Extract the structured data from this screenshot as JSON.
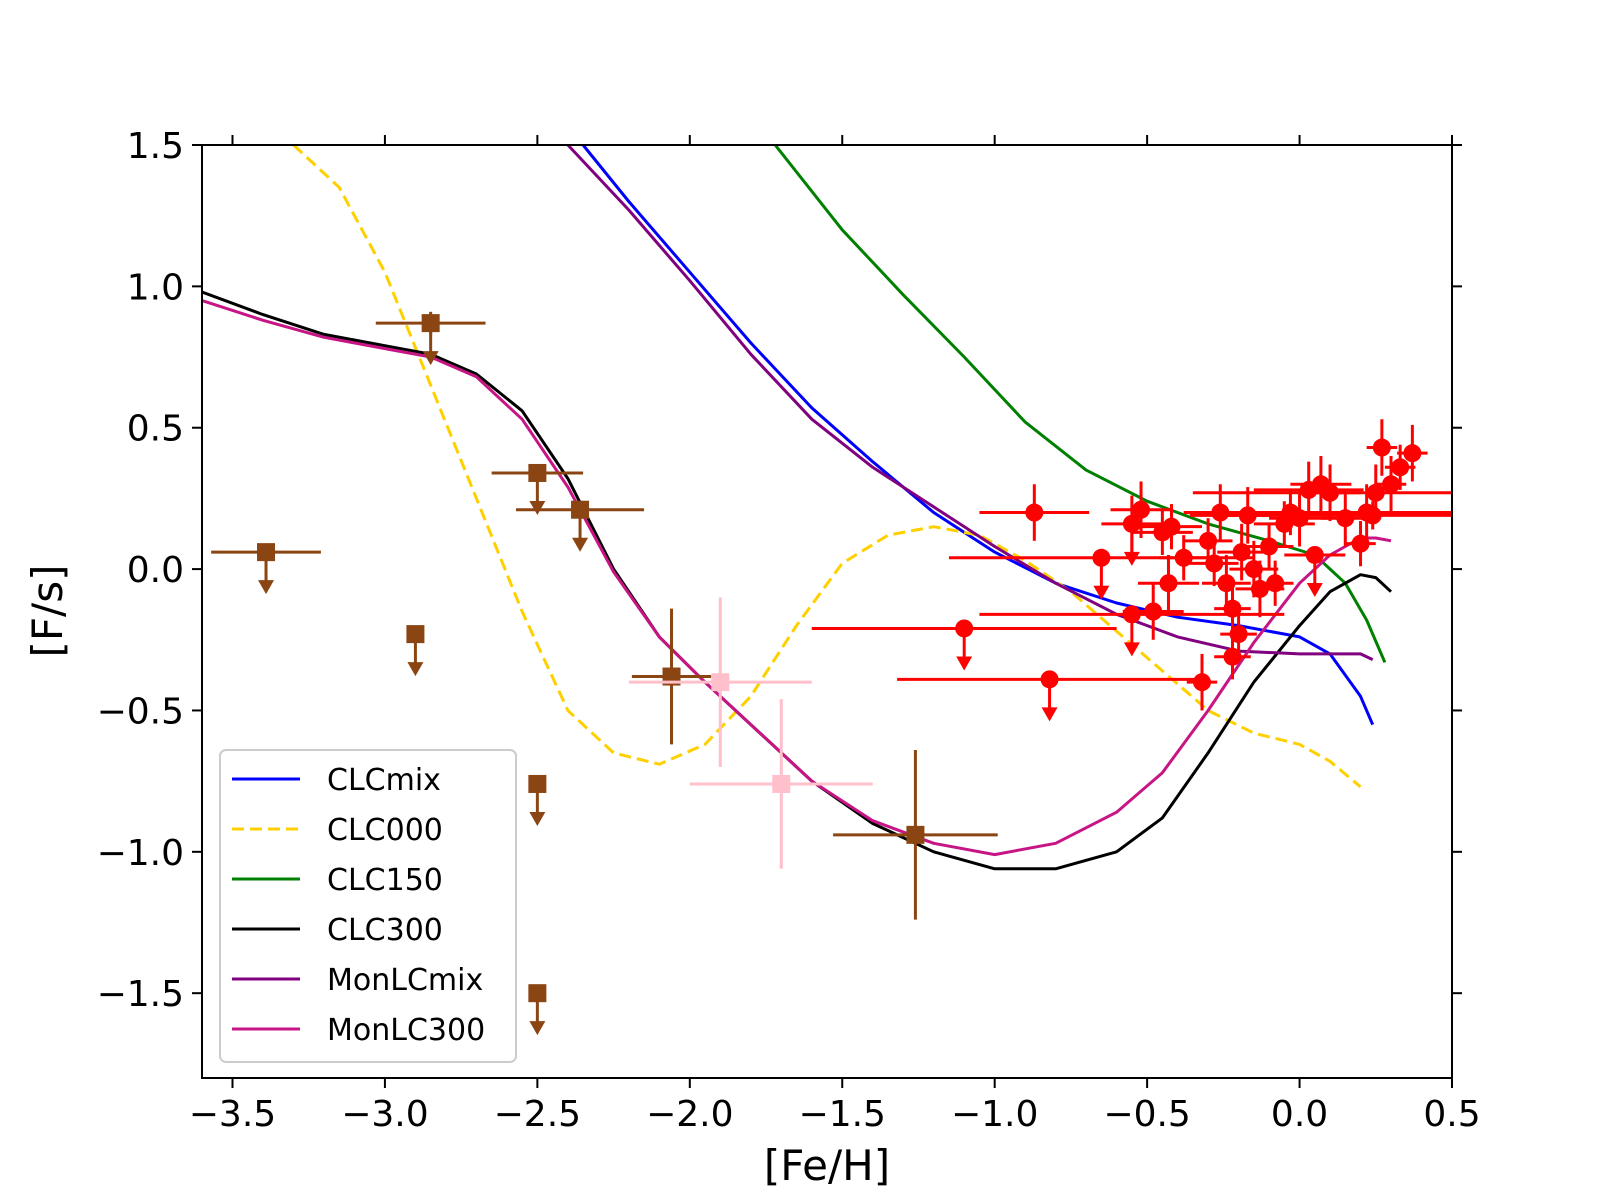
{
  "chart_data": {
    "type": "line",
    "title": "",
    "xlabel": "[Fe/H]",
    "ylabel": "[F/s]",
    "xlim": [
      -3.6,
      0.5
    ],
    "ylim": [
      -1.8,
      1.5
    ],
    "xticks": [
      -3.5,
      -3.0,
      -2.5,
      -2.0,
      -1.5,
      -1.0,
      -0.5,
      0.0,
      0.5
    ],
    "yticks": [
      1.5,
      1.0,
      0.5,
      0.0,
      -0.5,
      -1.0,
      -1.5
    ],
    "xtick_labels": [
      "−3.5",
      "−3.0",
      "−2.5",
      "−2.0",
      "−1.5",
      "−1.0",
      "−0.5",
      "0.0",
      "0.5"
    ],
    "ytick_labels": [
      "1.5",
      "1.0",
      "0.5",
      "0.0",
      "−0.5",
      "−1.0",
      "−1.5"
    ],
    "legend_position": "lower-left",
    "series": [
      {
        "name": "CLCmix",
        "color": "#0000ff",
        "dash": "solid",
        "x": [
          -2.35,
          -2.2,
          -2.0,
          -1.8,
          -1.6,
          -1.4,
          -1.2,
          -1.0,
          -0.8,
          -0.6,
          -0.4,
          -0.2,
          0.0,
          0.1,
          0.2,
          0.24
        ],
        "y": [
          1.5,
          1.3,
          1.05,
          0.8,
          0.57,
          0.38,
          0.2,
          0.06,
          -0.05,
          -0.12,
          -0.17,
          -0.2,
          -0.24,
          -0.3,
          -0.45,
          -0.55
        ]
      },
      {
        "name": "CLC000",
        "color": "#ffd000",
        "dash": "dashed",
        "x": [
          -3.3,
          -3.15,
          -3.0,
          -2.85,
          -2.7,
          -2.55,
          -2.4,
          -2.25,
          -2.1,
          -1.95,
          -1.8,
          -1.65,
          -1.5,
          -1.35,
          -1.2,
          -1.05,
          -0.9,
          -0.75,
          -0.6,
          -0.45,
          -0.3,
          -0.15,
          0.0,
          0.1,
          0.2
        ],
        "y": [
          1.5,
          1.35,
          1.05,
          0.65,
          0.25,
          -0.15,
          -0.5,
          -0.65,
          -0.69,
          -0.62,
          -0.45,
          -0.2,
          0.02,
          0.12,
          0.15,
          0.12,
          0.03,
          -0.08,
          -0.22,
          -0.36,
          -0.5,
          -0.58,
          -0.62,
          -0.68,
          -0.77
        ]
      },
      {
        "name": "CLC150",
        "color": "#008000",
        "dash": "solid",
        "x": [
          -1.72,
          -1.5,
          -1.3,
          -1.1,
          -0.9,
          -0.7,
          -0.5,
          -0.3,
          -0.1,
          0.05,
          0.15,
          0.22,
          0.28
        ],
        "y": [
          1.5,
          1.2,
          0.97,
          0.75,
          0.52,
          0.35,
          0.24,
          0.16,
          0.1,
          0.05,
          -0.05,
          -0.18,
          -0.33
        ]
      },
      {
        "name": "CLC300",
        "color": "#000000",
        "dash": "solid",
        "x": [
          -3.6,
          -3.4,
          -3.2,
          -3.0,
          -2.85,
          -2.7,
          -2.55,
          -2.4,
          -2.25,
          -2.1,
          -1.95,
          -1.8,
          -1.6,
          -1.4,
          -1.2,
          -1.0,
          -0.8,
          -0.6,
          -0.45,
          -0.3,
          -0.15,
          0.0,
          0.1,
          0.2,
          0.25,
          0.3
        ],
        "y": [
          0.98,
          0.9,
          0.83,
          0.79,
          0.76,
          0.69,
          0.56,
          0.32,
          0.0,
          -0.24,
          -0.4,
          -0.55,
          -0.75,
          -0.9,
          -1.0,
          -1.06,
          -1.06,
          -1.0,
          -0.88,
          -0.65,
          -0.4,
          -0.2,
          -0.08,
          -0.02,
          -0.03,
          -0.08
        ]
      },
      {
        "name": "MonLCmix",
        "color": "#800080",
        "dash": "solid",
        "x": [
          -2.4,
          -2.2,
          -2.0,
          -1.8,
          -1.6,
          -1.4,
          -1.2,
          -1.0,
          -0.8,
          -0.6,
          -0.4,
          -0.2,
          0.0,
          0.1,
          0.2,
          0.24
        ],
        "y": [
          1.5,
          1.27,
          1.02,
          0.76,
          0.53,
          0.36,
          0.22,
          0.08,
          -0.05,
          -0.16,
          -0.24,
          -0.29,
          -0.3,
          -0.3,
          -0.3,
          -0.32
        ]
      },
      {
        "name": "MonLC300",
        "color": "#c71585",
        "dash": "solid",
        "x": [
          -3.6,
          -3.4,
          -3.2,
          -3.0,
          -2.85,
          -2.7,
          -2.55,
          -2.4,
          -2.25,
          -2.1,
          -1.95,
          -1.8,
          -1.6,
          -1.4,
          -1.2,
          -1.0,
          -0.8,
          -0.6,
          -0.45,
          -0.3,
          -0.15,
          0.0,
          0.1,
          0.2,
          0.25,
          0.3
        ],
        "y": [
          0.95,
          0.88,
          0.82,
          0.78,
          0.75,
          0.68,
          0.53,
          0.29,
          -0.01,
          -0.24,
          -0.4,
          -0.55,
          -0.75,
          -0.89,
          -0.97,
          -1.01,
          -0.97,
          -0.86,
          -0.72,
          -0.5,
          -0.26,
          -0.05,
          0.05,
          0.11,
          0.11,
          0.1
        ]
      }
    ],
    "observations": [
      {
        "name": "brown-squares",
        "color": "#8b4513",
        "marker": "square",
        "points": [
          {
            "x": -3.39,
            "y": 0.06,
            "xerr": 0.18,
            "yerr": 0,
            "upper": true
          },
          {
            "x": -2.9,
            "y": -0.23,
            "xerr": 0,
            "yerr": 0,
            "upper": true
          },
          {
            "x": -2.85,
            "y": 0.87,
            "xerr": 0.18,
            "yerr": 0.04,
            "upper": true
          },
          {
            "x": -2.5,
            "y": 0.34,
            "xerr": 0.15,
            "yerr": 0,
            "upper": true
          },
          {
            "x": -2.36,
            "y": 0.21,
            "xerr": 0.21,
            "yerr": 0,
            "upper": true
          },
          {
            "x": -2.06,
            "y": -0.38,
            "xerr": 0.13,
            "yerr": 0.24,
            "upper": false
          },
          {
            "x": -1.26,
            "y": -0.94,
            "xerr": 0.27,
            "yerr": 0.3,
            "upper": false
          },
          {
            "x": -2.5,
            "y": -0.76,
            "xerr": 0,
            "yerr": 0,
            "upper": true
          },
          {
            "x": -2.5,
            "y": -1.5,
            "xerr": 0,
            "yerr": 0,
            "upper": true
          }
        ]
      },
      {
        "name": "pink-squares",
        "color": "#ffc0cb",
        "marker": "square",
        "points": [
          {
            "x": -1.9,
            "y": -0.4,
            "xerr": 0.3,
            "yerr": 0.3,
            "upper": false
          },
          {
            "x": -1.7,
            "y": -0.76,
            "xerr": 0.3,
            "yerr": 0.3,
            "upper": false
          }
        ]
      },
      {
        "name": "red-circles",
        "color": "#ff0000",
        "marker": "circle",
        "points": [
          {
            "x": -0.87,
            "y": 0.2,
            "xerr": 0.18,
            "yerr": 0.1,
            "upper": false
          },
          {
            "x": -0.65,
            "y": 0.04,
            "xerr": 0.5,
            "yerr": 0,
            "upper": true
          },
          {
            "x": -0.52,
            "y": 0.21,
            "xerr": 0.1,
            "yerr": 0.1,
            "upper": false
          },
          {
            "x": -0.55,
            "y": 0.16,
            "xerr": 0.1,
            "yerr": 0.1,
            "upper": true
          },
          {
            "x": -0.45,
            "y": 0.13,
            "xerr": 0.1,
            "yerr": 0.08,
            "upper": false
          },
          {
            "x": -0.42,
            "y": 0.15,
            "xerr": 0.1,
            "yerr": 0.08,
            "upper": false
          },
          {
            "x": -0.38,
            "y": 0.04,
            "xerr": 0.08,
            "yerr": 0.08,
            "upper": false
          },
          {
            "x": -0.43,
            "y": -0.05,
            "xerr": 0.1,
            "yerr": 0.1,
            "upper": false
          },
          {
            "x": -0.48,
            "y": -0.15,
            "xerr": 0.1,
            "yerr": 0.1,
            "upper": false
          },
          {
            "x": -0.55,
            "y": -0.16,
            "xerr": 0.5,
            "yerr": 0,
            "upper": true
          },
          {
            "x": -1.1,
            "y": -0.21,
            "xerr": 0.5,
            "yerr": 0,
            "upper": true
          },
          {
            "x": -0.82,
            "y": -0.39,
            "xerr": 0.5,
            "yerr": 0,
            "upper": true
          },
          {
            "x": -0.32,
            "y": -0.4,
            "xerr": 0.05,
            "yerr": 0.1,
            "upper": false
          },
          {
            "x": -0.3,
            "y": 0.1,
            "xerr": 0.08,
            "yerr": 0.08,
            "upper": false
          },
          {
            "x": -0.28,
            "y": 0.02,
            "xerr": 0.08,
            "yerr": 0.08,
            "upper": false
          },
          {
            "x": -0.26,
            "y": 0.2,
            "xerr": 0.08,
            "yerr": 0.1,
            "upper": false
          },
          {
            "x": -0.24,
            "y": -0.05,
            "xerr": 0.08,
            "yerr": 0.1,
            "upper": false
          },
          {
            "x": -0.22,
            "y": -0.14,
            "xerr": 0.06,
            "yerr": 0.08,
            "upper": false
          },
          {
            "x": -0.2,
            "y": -0.23,
            "xerr": 0.06,
            "yerr": 0.08,
            "upper": false
          },
          {
            "x": -0.22,
            "y": -0.31,
            "xerr": 0.06,
            "yerr": 0.08,
            "upper": false
          },
          {
            "x": -0.19,
            "y": 0.06,
            "xerr": 0.08,
            "yerr": 0.1,
            "upper": false
          },
          {
            "x": -0.17,
            "y": 0.19,
            "xerr": 0.08,
            "yerr": 0.1,
            "upper": false
          },
          {
            "x": -0.15,
            "y": 0.0,
            "xerr": 0.08,
            "yerr": 0.1,
            "upper": false
          },
          {
            "x": -0.13,
            "y": -0.07,
            "xerr": 0.08,
            "yerr": 0.1,
            "upper": false
          },
          {
            "x": -0.1,
            "y": 0.08,
            "xerr": 0.08,
            "yerr": 0.08,
            "upper": false
          },
          {
            "x": -0.08,
            "y": -0.05,
            "xerr": 0.06,
            "yerr": 0.08,
            "upper": false
          },
          {
            "x": -0.05,
            "y": 0.16,
            "xerr": 0.1,
            "yerr": 0.08,
            "upper": false
          },
          {
            "x": -0.03,
            "y": 0.2,
            "xerr": 0.1,
            "yerr": 0.08,
            "upper": false
          },
          {
            "x": 0.0,
            "y": 0.18,
            "xerr": 0.1,
            "yerr": 0.1,
            "upper": false
          },
          {
            "x": 0.03,
            "y": 0.28,
            "xerr": 0.18,
            "yerr": 0.1,
            "upper": false
          },
          {
            "x": 0.05,
            "y": 0.05,
            "xerr": 0.1,
            "yerr": 0,
            "upper": true
          },
          {
            "x": 0.07,
            "y": 0.3,
            "xerr": 0.1,
            "yerr": 0.1,
            "upper": false
          },
          {
            "x": 0.1,
            "y": 0.27,
            "xerr": 0.1,
            "yerr": 0.1,
            "upper": false
          },
          {
            "x": 0.15,
            "y": 0.18,
            "xerr": 0.08,
            "yerr": 0.1,
            "upper": false
          },
          {
            "x": 0.2,
            "y": 0.09,
            "xerr": 0.05,
            "yerr": 0.08,
            "upper": false
          },
          {
            "x": 0.22,
            "y": 0.2,
            "xerr": 0.6,
            "yerr": 0.1,
            "upper": false
          },
          {
            "x": 0.25,
            "y": 0.27,
            "xerr": 0.6,
            "yerr": 0.1,
            "upper": false
          },
          {
            "x": 0.27,
            "y": 0.43,
            "xerr": 0.05,
            "yerr": 0.1,
            "upper": false
          },
          {
            "x": 0.3,
            "y": 0.3,
            "xerr": 0.05,
            "yerr": 0.1,
            "upper": false
          },
          {
            "x": 0.33,
            "y": 0.36,
            "xerr": 0.05,
            "yerr": 0.08,
            "upper": false
          },
          {
            "x": 0.37,
            "y": 0.41,
            "xerr": 0.05,
            "yerr": 0.1,
            "upper": false
          },
          {
            "x": 0.24,
            "y": 0.19,
            "xerr": 0.6,
            "yerr": 0.05,
            "upper": false
          }
        ]
      }
    ]
  }
}
